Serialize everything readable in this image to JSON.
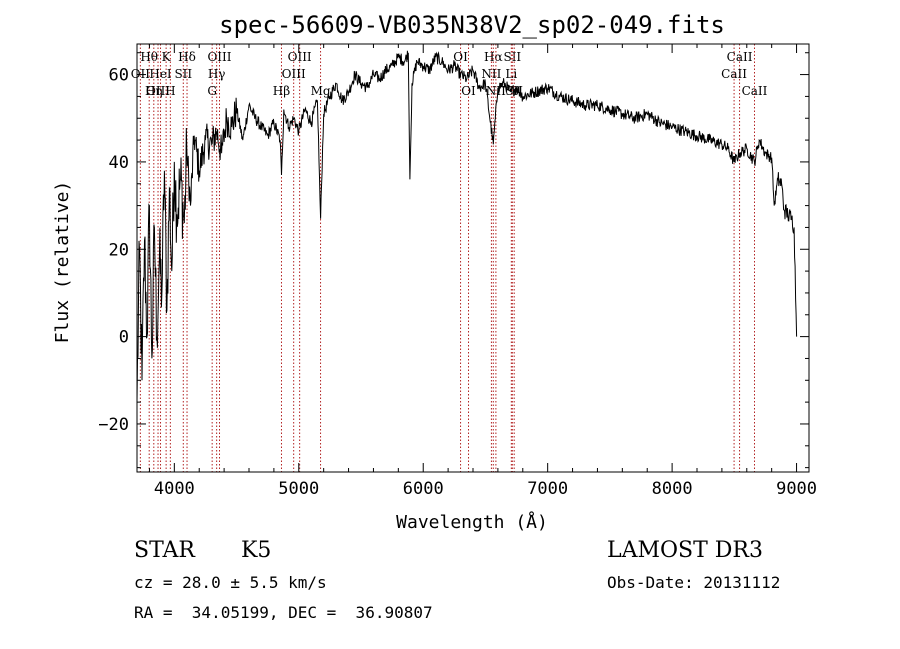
{
  "chart_data": {
    "type": "line",
    "title": "spec-56609-VB035N38V2_sp02-049.fits",
    "xlabel": "Wavelength (Å)",
    "ylabel": "Flux (relative)",
    "xlim": [
      3700,
      9100
    ],
    "ylim": [
      -31,
      67
    ],
    "x_ticks": [
      4000,
      5000,
      6000,
      7000,
      8000,
      9000
    ],
    "y_ticks": [
      -20,
      0,
      20,
      40,
      60
    ],
    "x_tick_labels": [
      "4000",
      "5000",
      "6000",
      "7000",
      "8000",
      "9000"
    ],
    "y_tick_labels": [
      "−20",
      "0",
      "20",
      "40",
      "60"
    ],
    "line_color": "#000000",
    "marker_color": "#b22222",
    "series": [
      {
        "name": "flux",
        "x": [
          3700,
          3720,
          3740,
          3760,
          3780,
          3800,
          3820,
          3840,
          3860,
          3880,
          3900,
          3920,
          3940,
          3960,
          3980,
          4000,
          4020,
          4050,
          4080,
          4100,
          4130,
          4160,
          4200,
          4250,
          4300,
          4340,
          4380,
          4420,
          4460,
          4500,
          4550,
          4600,
          4650,
          4700,
          4750,
          4800,
          4850,
          4861,
          4880,
          4920,
          4960,
          5000,
          5050,
          5100,
          5150,
          5175,
          5200,
          5250,
          5300,
          5350,
          5400,
          5450,
          5500,
          5550,
          5600,
          5650,
          5700,
          5750,
          5800,
          5850,
          5880,
          5893,
          5910,
          5950,
          6000,
          6050,
          6100,
          6150,
          6200,
          6250,
          6300,
          6350,
          6400,
          6450,
          6500,
          6563,
          6600,
          6650,
          6700,
          6750,
          6800,
          6900,
          7000,
          7100,
          7200,
          7300,
          7400,
          7500,
          7600,
          7700,
          7800,
          7900,
          8000,
          8100,
          8200,
          8300,
          8400,
          8450,
          8498,
          8542,
          8600,
          8662,
          8700,
          8750,
          8800,
          8820,
          8850,
          8880,
          8900,
          8930,
          8960,
          8980,
          9000
        ],
        "y": [
          -15,
          20,
          -10,
          22,
          0,
          30,
          -5,
          25,
          0,
          18,
          10,
          38,
          6,
          34,
          15,
          40,
          28,
          36,
          26,
          43,
          30,
          46,
          38,
          45,
          44,
          47,
          42,
          50,
          48,
          52,
          45,
          53,
          50,
          48,
          46,
          49,
          45,
          37,
          52,
          48,
          50,
          47,
          52,
          49,
          54,
          27,
          51,
          55,
          58,
          54,
          56,
          60,
          58,
          57,
          60,
          59,
          61,
          62,
          64,
          63,
          65,
          36,
          58,
          63,
          62,
          61,
          64,
          63,
          61,
          62,
          60,
          59,
          61,
          57,
          58,
          44,
          57,
          58,
          56,
          57,
          55,
          56,
          57,
          55,
          54,
          53,
          53,
          52,
          51,
          50,
          51,
          49,
          48,
          47,
          46,
          45,
          44,
          43,
          40,
          42,
          43,
          40,
          45,
          42,
          41,
          30,
          36,
          35,
          29,
          28,
          27,
          25,
          0
        ]
      }
    ],
    "line_markers": [
      {
        "label": "Hθ",
        "x": 3798,
        "row": 0
      },
      {
        "label": "OII",
        "x": 3727,
        "row": 1
      },
      {
        "label": "OIII",
        "x": 3869,
        "row": 2
      },
      {
        "label": "K",
        "x": 3934,
        "row": 0
      },
      {
        "label": "HeI",
        "x": 3889,
        "row": 1
      },
      {
        "label": "Hη",
        "x": 3835,
        "row": 2
      },
      {
        "label": "SII",
        "x": 4072,
        "row": 1
      },
      {
        "label": "H",
        "x": 3968,
        "row": 2
      },
      {
        "label": "Hδ",
        "x": 4102,
        "row": 0
      },
      {
        "label": "OIII",
        "x": 4363,
        "row": 0
      },
      {
        "label": "Hγ",
        "x": 4340,
        "row": 1
      },
      {
        "label": "G",
        "x": 4304,
        "row": 2
      },
      {
        "label": "Hβ",
        "x": 4861,
        "row": 2
      },
      {
        "label": "OIII",
        "x": 5007,
        "row": 0
      },
      {
        "label": "OIII",
        "x": 4959,
        "row": 1
      },
      {
        "label": "Mg",
        "x": 5175,
        "row": 2
      },
      {
        "label": "OI",
        "x": 6300,
        "row": 0
      },
      {
        "label": "OI",
        "x": 6364,
        "row": 2
      },
      {
        "label": "Hα",
        "x": 6563,
        "row": 0
      },
      {
        "label": "NII",
        "x": 6548,
        "row": 1
      },
      {
        "label": "NII",
        "x": 6584,
        "row": 2
      },
      {
        "label": "SII",
        "x": 6716,
        "row": 0
      },
      {
        "label": "Li",
        "x": 6708,
        "row": 1
      },
      {
        "label": "SII",
        "x": 6731,
        "row": 2
      },
      {
        "label": "CaII",
        "x": 8542,
        "row": 0
      },
      {
        "label": "CaII",
        "x": 8498,
        "row": 1
      },
      {
        "label": "CaII",
        "x": 8662,
        "row": 2
      }
    ]
  },
  "footer": {
    "class_label": "STAR",
    "subclass": "K5",
    "survey": "LAMOST DR3",
    "cz": "cz = 28.0 ± 5.5 km/s",
    "obs_date": "Obs-Date: 20131112",
    "coords": "RA =  34.05199, DEC =  36.90807"
  }
}
